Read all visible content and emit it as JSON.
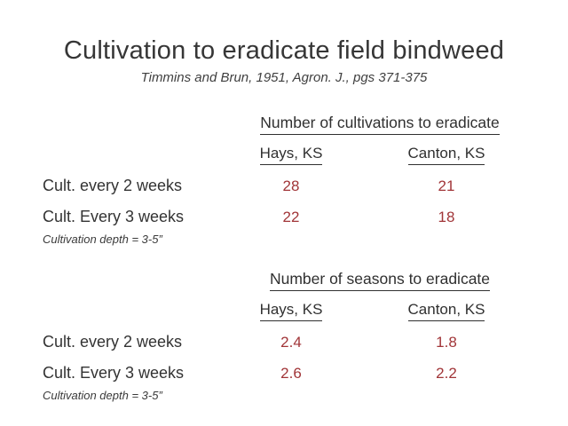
{
  "slide": {
    "title": "Cultivation to eradicate field bindweed",
    "subtitle": "Timmins and Brun, 1951, Agron. J., pgs 371-375",
    "background_color": "#ffffff",
    "text_color": "#363636",
    "value_color": "#a13538"
  },
  "sections": [
    {
      "header": "Number of cultivations to eradicate",
      "columns": [
        "Hays, KS",
        "Canton, KS"
      ],
      "rows": [
        {
          "label": "Cult. every 2 weeks",
          "values": [
            "28",
            "21"
          ]
        },
        {
          "label": "Cult. Every 3 weeks",
          "values": [
            "22",
            "18"
          ]
        }
      ],
      "note": "Cultivation depth = 3-5”"
    },
    {
      "header": "Number of seasons to eradicate",
      "columns": [
        "Hays, KS",
        "Canton, KS"
      ],
      "rows": [
        {
          "label": "Cult. every 2 weeks",
          "values": [
            "2.4",
            "1.8"
          ]
        },
        {
          "label": "Cult. Every 3 weeks",
          "values": [
            "2.6",
            "2.2"
          ]
        }
      ],
      "note": "Cultivation depth = 3-5”"
    }
  ]
}
